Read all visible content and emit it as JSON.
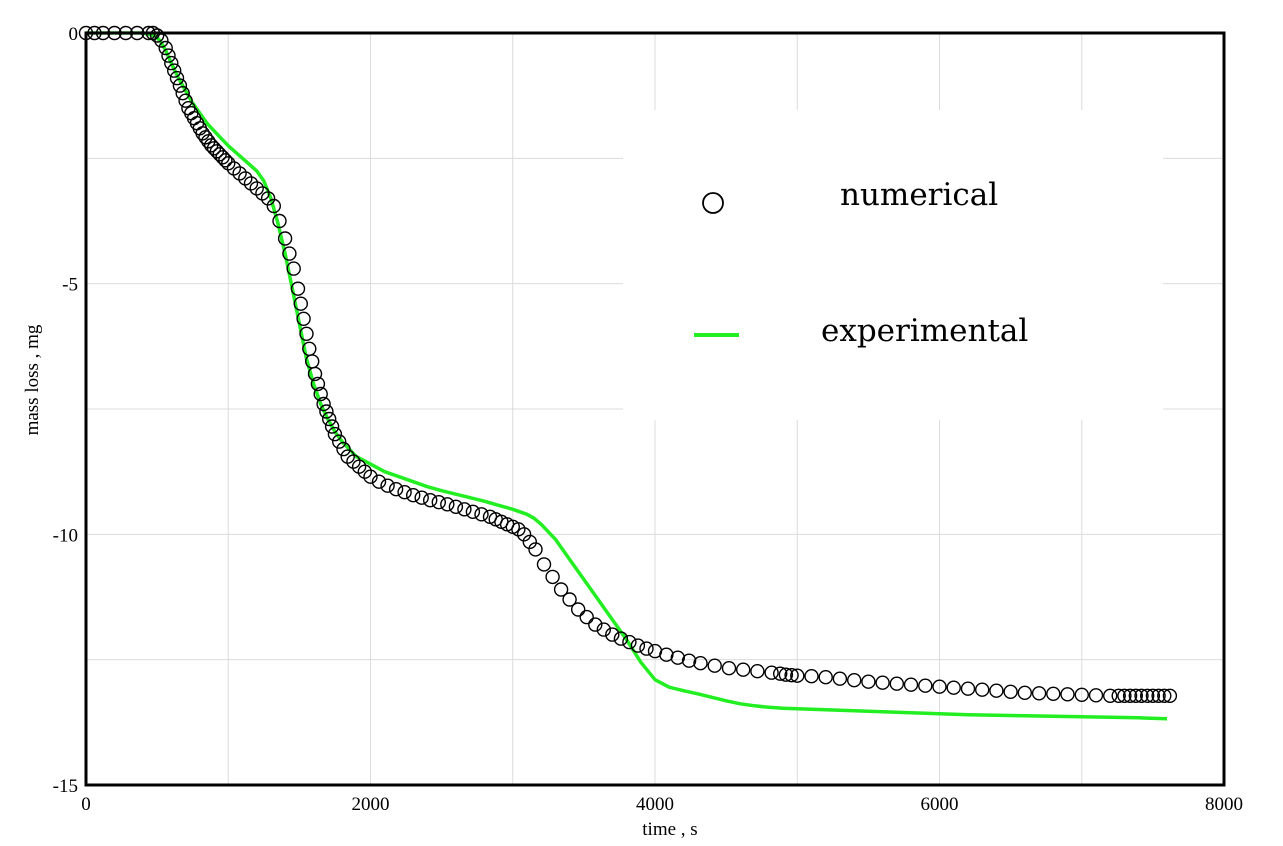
{
  "chart_data": {
    "type": "scatter",
    "title": "",
    "xlabel": "time , s",
    "ylabel": "mass loss , mg",
    "xlim": [
      0,
      8000
    ],
    "ylim": [
      -15,
      0
    ],
    "x_ticks": [
      0,
      2000,
      4000,
      6000,
      8000
    ],
    "y_ticks": [
      0,
      -5,
      -10,
      -15
    ],
    "x_tick_labels": [
      "0",
      "2000",
      "4000",
      "6000",
      "8000"
    ],
    "y_tick_labels": [
      "0",
      "-5",
      "-10",
      "-15"
    ],
    "x_grid_step": 1000,
    "y_grid_step": 2.5,
    "grid": true,
    "legend_position": "top-right",
    "legend": {
      "numerical_label": "numerical",
      "experimental_label": "experimental"
    },
    "series": [
      {
        "name": "numerical",
        "style": "open-circle",
        "color": "#000000",
        "x": [
          0,
          60,
          120,
          200,
          280,
          360,
          440,
          470,
          500,
          530,
          560,
          580,
          600,
          620,
          640,
          660,
          680,
          700,
          720,
          740,
          760,
          780,
          800,
          820,
          840,
          860,
          880,
          900,
          920,
          940,
          960,
          980,
          1000,
          1040,
          1080,
          1120,
          1160,
          1200,
          1240,
          1280,
          1320,
          1360,
          1400,
          1430,
          1460,
          1490,
          1510,
          1530,
          1550,
          1570,
          1590,
          1610,
          1630,
          1650,
          1670,
          1690,
          1710,
          1730,
          1750,
          1780,
          1810,
          1840,
          1880,
          1920,
          1960,
          2000,
          2060,
          2120,
          2180,
          2240,
          2300,
          2360,
          2420,
          2480,
          2540,
          2600,
          2660,
          2720,
          2780,
          2840,
          2880,
          2920,
          2960,
          3000,
          3040,
          3080,
          3120,
          3160,
          3220,
          3280,
          3340,
          3400,
          3460,
          3520,
          3580,
          3640,
          3700,
          3760,
          3820,
          3880,
          3940,
          4000,
          4080,
          4160,
          4240,
          4320,
          4420,
          4520,
          4620,
          4720,
          4820,
          4880,
          4920,
          4960,
          5000,
          5100,
          5200,
          5300,
          5400,
          5500,
          5600,
          5700,
          5800,
          5900,
          6000,
          6100,
          6200,
          6300,
          6400,
          6500,
          6600,
          6700,
          6800,
          6900,
          7000,
          7100,
          7200,
          7260,
          7300,
          7340,
          7380,
          7420,
          7460,
          7500,
          7540,
          7580,
          7620
        ],
        "y": [
          0,
          0,
          0,
          0,
          0,
          0,
          0,
          0,
          -0.05,
          -0.15,
          -0.3,
          -0.45,
          -0.6,
          -0.75,
          -0.9,
          -1.05,
          -1.2,
          -1.35,
          -1.5,
          -1.6,
          -1.7,
          -1.8,
          -1.9,
          -2.0,
          -2.08,
          -2.16,
          -2.24,
          -2.3,
          -2.36,
          -2.42,
          -2.48,
          -2.54,
          -2.6,
          -2.7,
          -2.8,
          -2.9,
          -3.0,
          -3.1,
          -3.2,
          -3.3,
          -3.45,
          -3.75,
          -4.1,
          -4.4,
          -4.7,
          -5.1,
          -5.4,
          -5.7,
          -6.0,
          -6.3,
          -6.55,
          -6.8,
          -7.0,
          -7.2,
          -7.4,
          -7.55,
          -7.7,
          -7.85,
          -8.0,
          -8.15,
          -8.3,
          -8.45,
          -8.55,
          -8.65,
          -8.75,
          -8.85,
          -8.95,
          -9.03,
          -9.1,
          -9.16,
          -9.22,
          -9.27,
          -9.32,
          -9.36,
          -9.4,
          -9.45,
          -9.5,
          -9.55,
          -9.6,
          -9.65,
          -9.7,
          -9.75,
          -9.8,
          -9.85,
          -9.9,
          -10.0,
          -10.15,
          -10.3,
          -10.6,
          -10.85,
          -11.1,
          -11.3,
          -11.5,
          -11.65,
          -11.8,
          -11.9,
          -12.0,
          -12.08,
          -12.15,
          -12.22,
          -12.28,
          -12.33,
          -12.4,
          -12.46,
          -12.52,
          -12.57,
          -12.62,
          -12.67,
          -12.7,
          -12.73,
          -12.76,
          -12.78,
          -12.8,
          -12.81,
          -12.82,
          -12.83,
          -12.85,
          -12.88,
          -12.91,
          -12.94,
          -12.96,
          -12.98,
          -13.0,
          -13.02,
          -13.04,
          -13.06,
          -13.08,
          -13.1,
          -13.12,
          -13.14,
          -13.16,
          -13.17,
          -13.18,
          -13.19,
          -13.2,
          -13.21,
          -13.22,
          -13.22,
          -13.22,
          -13.22,
          -13.22,
          -13.22,
          -13.22,
          -13.22,
          -13.22,
          -13.22,
          -13.22
        ]
      },
      {
        "name": "experimental",
        "style": "line",
        "color": "#22ee22",
        "x": [
          0,
          200,
          400,
          480,
          520,
          560,
          600,
          650,
          700,
          750,
          800,
          850,
          900,
          950,
          1000,
          1100,
          1200,
          1250,
          1300,
          1350,
          1400,
          1450,
          1500,
          1550,
          1600,
          1650,
          1700,
          1750,
          1800,
          1850,
          1900,
          2000,
          2100,
          2200,
          2300,
          2400,
          2500,
          2600,
          2700,
          2800,
          2900,
          3000,
          3100,
          3150,
          3200,
          3300,
          3400,
          3500,
          3600,
          3700,
          3800,
          3900,
          4000,
          4100,
          4200,
          4300,
          4400,
          4500,
          4600,
          4700,
          4800,
          4900,
          5000,
          5200,
          5400,
          5600,
          5800,
          6000,
          6200,
          6400,
          6600,
          6800,
          7000,
          7200,
          7400,
          7600
        ],
        "y": [
          0,
          0,
          0,
          -0.05,
          -0.15,
          -0.35,
          -0.6,
          -0.9,
          -1.15,
          -1.4,
          -1.6,
          -1.8,
          -1.95,
          -2.1,
          -2.25,
          -2.5,
          -2.75,
          -2.95,
          -3.3,
          -3.8,
          -4.4,
          -5.1,
          -5.8,
          -6.5,
          -7.0,
          -7.4,
          -7.7,
          -7.95,
          -8.15,
          -8.3,
          -8.45,
          -8.6,
          -8.75,
          -8.85,
          -8.95,
          -9.05,
          -9.13,
          -9.2,
          -9.27,
          -9.34,
          -9.42,
          -9.5,
          -9.6,
          -9.68,
          -9.8,
          -10.1,
          -10.5,
          -10.9,
          -11.3,
          -11.7,
          -12.1,
          -12.55,
          -12.9,
          -13.05,
          -13.12,
          -13.18,
          -13.25,
          -13.32,
          -13.38,
          -13.42,
          -13.45,
          -13.47,
          -13.48,
          -13.5,
          -13.52,
          -13.54,
          -13.56,
          -13.58,
          -13.6,
          -13.61,
          -13.62,
          -13.63,
          -13.64,
          -13.65,
          -13.66,
          -13.68
        ]
      }
    ]
  }
}
